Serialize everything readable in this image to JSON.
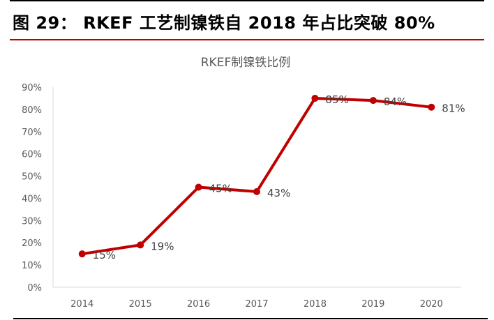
{
  "figure_title": "图 29： RKEF 工艺制镍铁自 2018 年占比突破 80%",
  "chart_data": {
    "type": "line",
    "title": "RKEF制镍铁比例",
    "categories": [
      "2014",
      "2015",
      "2016",
      "2017",
      "2018",
      "2019",
      "2020"
    ],
    "series": [
      {
        "values": [
          15,
          19,
          45,
          43,
          85,
          84,
          81
        ],
        "color": "#c00000"
      }
    ],
    "data_labels": [
      "15%",
      "19%",
      "45%",
      "43%",
      "85%",
      "84%",
      "81%"
    ],
    "yticks": [
      "0%",
      "10%",
      "20%",
      "30%",
      "40%",
      "50%",
      "60%",
      "70%",
      "80%",
      "90%"
    ],
    "ylim": [
      0,
      90
    ],
    "grid": false,
    "legend": "none"
  }
}
